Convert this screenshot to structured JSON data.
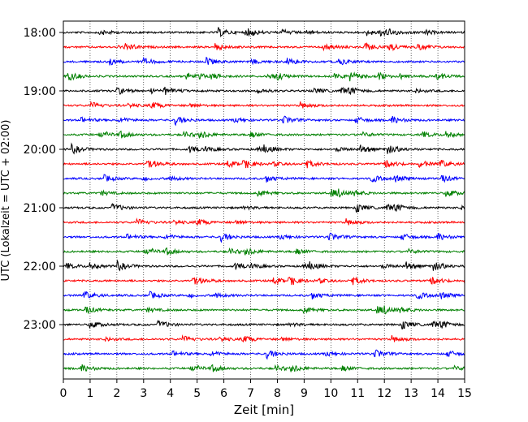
{
  "chart_data": {
    "type": "line",
    "title": "",
    "xlabel": "Zeit  [min]",
    "ylabel": "UTC (Lokalzeit = UTC + 02:00)",
    "xlim": [
      0,
      15
    ],
    "x_ticks": [
      0,
      1,
      2,
      3,
      4,
      5,
      6,
      7,
      8,
      9,
      10,
      11,
      12,
      13,
      14,
      15
    ],
    "y_tick_labels": [
      "18:00",
      "19:00",
      "20:00",
      "21:00",
      "22:00",
      "23:00"
    ],
    "trace_minutes": 15,
    "start_time": "18:00",
    "end_time": "24:00",
    "trace_colors": [
      "#000000",
      "#ff0000",
      "#0000ff",
      "#008000"
    ],
    "grid": {
      "vertical": true,
      "style": "dotted"
    },
    "legend": "none",
    "series": [
      {
        "start": "18:00",
        "color": "#000000"
      },
      {
        "start": "18:15",
        "color": "#ff0000"
      },
      {
        "start": "18:30",
        "color": "#0000ff"
      },
      {
        "start": "18:45",
        "color": "#008000"
      },
      {
        "start": "19:00",
        "color": "#000000"
      },
      {
        "start": "19:15",
        "color": "#ff0000"
      },
      {
        "start": "19:30",
        "color": "#0000ff"
      },
      {
        "start": "19:45",
        "color": "#008000"
      },
      {
        "start": "20:00",
        "color": "#000000"
      },
      {
        "start": "20:15",
        "color": "#ff0000"
      },
      {
        "start": "20:30",
        "color": "#0000ff"
      },
      {
        "start": "20:45",
        "color": "#008000"
      },
      {
        "start": "21:00",
        "color": "#000000"
      },
      {
        "start": "21:15",
        "color": "#ff0000"
      },
      {
        "start": "21:30",
        "color": "#0000ff"
      },
      {
        "start": "21:45",
        "color": "#008000"
      },
      {
        "start": "22:00",
        "color": "#000000"
      },
      {
        "start": "22:15",
        "color": "#ff0000"
      },
      {
        "start": "22:30",
        "color": "#0000ff"
      },
      {
        "start": "22:45",
        "color": "#008000"
      },
      {
        "start": "23:00",
        "color": "#000000"
      },
      {
        "start": "23:15",
        "color": "#ff0000"
      },
      {
        "start": "23:30",
        "color": "#0000ff"
      },
      {
        "start": "23:45",
        "color": "#008000"
      }
    ]
  }
}
